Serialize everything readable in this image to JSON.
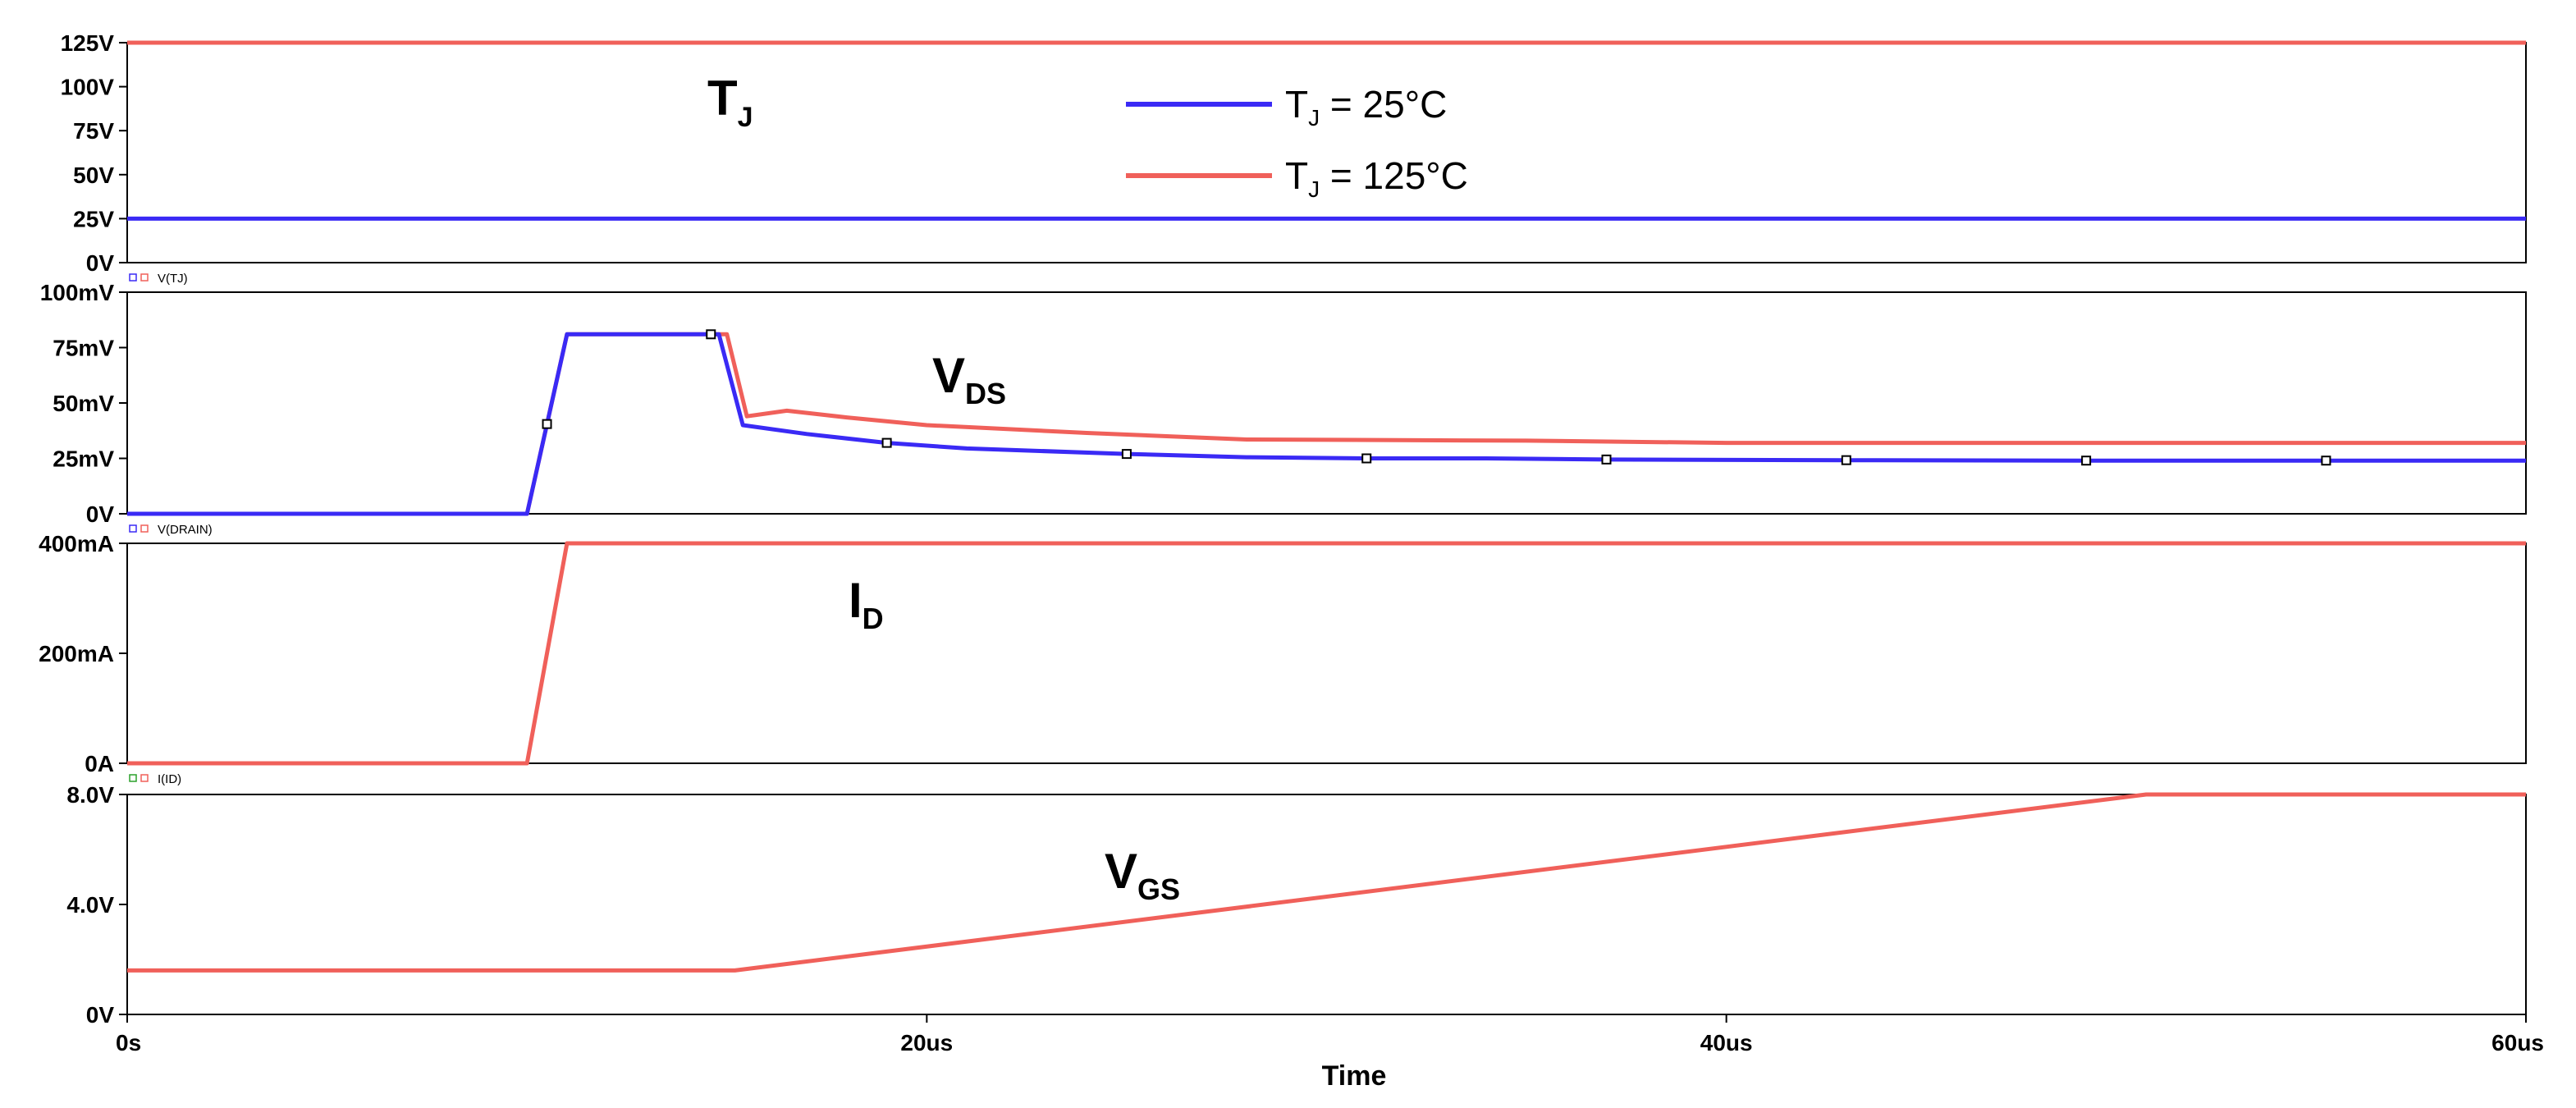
{
  "chart_data": {
    "type": "line",
    "colors": {
      "tj25": "#3a2af5",
      "tj125": "#f0605a",
      "frame": "#000000",
      "marker_blue": "#3a2af5",
      "marker_red": "#f0605a",
      "marker_green": "#2aa02a"
    },
    "x_axis": {
      "label": "Time",
      "unit": "us",
      "range": [
        0,
        60
      ],
      "ticks": [
        0,
        20,
        40,
        60
      ],
      "tick_labels": [
        "0s",
        "20us",
        "40us",
        "60us"
      ]
    },
    "legend": {
      "position": "top-center",
      "entries": [
        {
          "key": "tj25",
          "prefix": "T",
          "sub": "J",
          "suffix": " = 25°C"
        },
        {
          "key": "tj125",
          "prefix": "T",
          "sub": "J",
          "suffix": " = 125°C"
        }
      ]
    },
    "panels": [
      {
        "id": "tj",
        "trace_label": "V(TJ)",
        "trace_markers": [
          "blue",
          "red"
        ],
        "annotation": {
          "main": "T",
          "sub": "J"
        },
        "ylim": [
          0,
          125
        ],
        "yticks": [
          0,
          25,
          50,
          75,
          100,
          125
        ],
        "ytick_labels": [
          "0V",
          "25V",
          "50V",
          "75V",
          "100V",
          "125V"
        ],
        "series": [
          {
            "name": "T_J = 25°C",
            "key": "tj25",
            "x": [
              0,
              60
            ],
            "y": [
              25,
              25
            ]
          },
          {
            "name": "T_J = 125°C",
            "key": "tj125",
            "x": [
              0,
              60
            ],
            "y": [
              125,
              125
            ]
          }
        ]
      },
      {
        "id": "vds",
        "trace_label": "V(DRAIN)",
        "trace_markers": [
          "blue",
          "red"
        ],
        "annotation": {
          "main": "V",
          "sub": "DS"
        },
        "ylim": [
          0,
          100
        ],
        "yticks": [
          0,
          25,
          50,
          75,
          100
        ],
        "ytick_labels": [
          "0V",
          "25mV",
          "50mV",
          "75mV",
          "100mV"
        ],
        "series": [
          {
            "name": "T_J = 25°C",
            "key": "tj25",
            "x": [
              0,
              10,
              11,
              14.8,
              15.4,
              17,
              19,
              21,
              25,
              28,
              31,
              34,
              37,
              43,
              49,
              55,
              60
            ],
            "y": [
              0,
              0,
              81,
              81,
              40,
              36,
              32,
              29.5,
              27,
              25.5,
              25,
              25,
              24.5,
              24.2,
              24,
              24,
              24
            ],
            "markers_x": [
              10.5,
              14.6,
              19,
              25,
              31,
              37,
              43,
              49,
              55
            ]
          },
          {
            "name": "T_J = 125°C",
            "key": "tj125",
            "x": [
              0,
              10,
              11,
              15,
              15.5,
              16.5,
              18,
              20,
              24,
              28,
              35,
              40,
              50,
              60
            ],
            "y": [
              0,
              0,
              81,
              81,
              44,
              46.5,
              43.5,
              40,
              36.5,
              33.5,
              33,
              32,
              32,
              32
            ]
          }
        ]
      },
      {
        "id": "id",
        "trace_label": "I(ID)",
        "trace_markers": [
          "green",
          "red"
        ],
        "annotation": {
          "main": "I",
          "sub": "D"
        },
        "ylim": [
          0,
          400
        ],
        "yticks": [
          0,
          200,
          400
        ],
        "ytick_labels": [
          "0A",
          "200mA",
          "400mA"
        ],
        "series": [
          {
            "name": "T_J = 125°C",
            "key": "tj125",
            "x": [
              0,
              10,
              11,
              60
            ],
            "y": [
              0,
              0,
              400,
              400
            ]
          }
        ]
      },
      {
        "id": "vgs",
        "trace_label": "",
        "trace_markers": [],
        "annotation": {
          "main": "V",
          "sub": "GS"
        },
        "ylim": [
          0,
          8
        ],
        "yticks": [
          0,
          4,
          8
        ],
        "ytick_labels": [
          "0V",
          "4.0V",
          "8.0V"
        ],
        "series": [
          {
            "name": "T_J = 125°C",
            "key": "tj125",
            "x": [
              0,
              15.2,
              50.5,
              60
            ],
            "y": [
              1.6,
              1.6,
              8,
              8
            ]
          }
        ]
      }
    ]
  }
}
